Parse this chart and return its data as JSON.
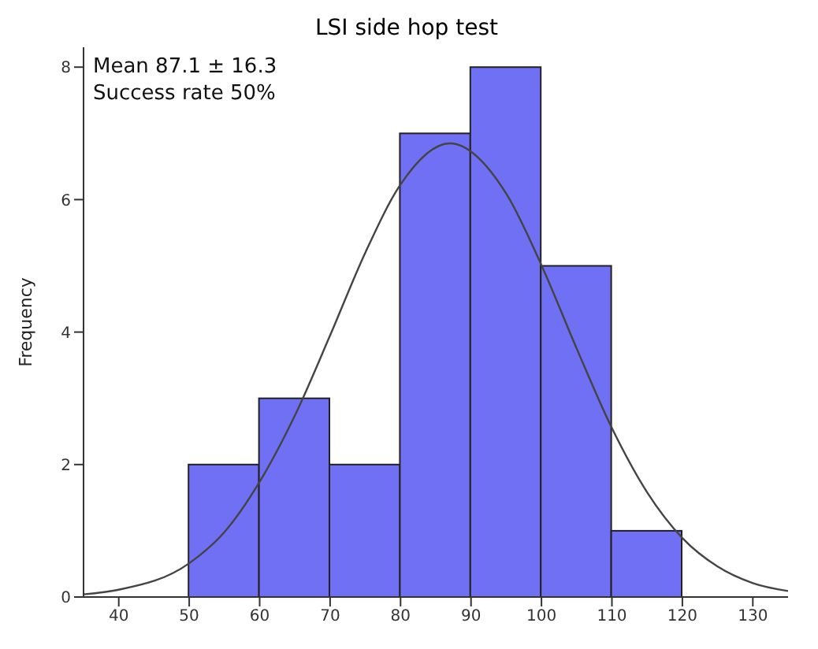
{
  "chart_data": {
    "type": "histogram",
    "title": "LSI side hop test",
    "ylabel": "Frequency",
    "annotations": [
      "Mean 87.1 ± 16.3",
      "Success rate 50%"
    ],
    "bins": [
      50,
      60,
      70,
      80,
      90,
      100,
      110,
      120
    ],
    "values": [
      2,
      3,
      2,
      7,
      8,
      5,
      1
    ],
    "color": "#7070f4",
    "series": [
      {
        "type": "line",
        "color": "#444444",
        "x": [
          35,
          40,
          50,
          55,
          60,
          65,
          70,
          75,
          80,
          87,
          95,
          100,
          105,
          110,
          115,
          120,
          125,
          130,
          135
        ],
        "values": [
          0.04,
          0.11,
          0.51,
          0.98,
          1.74,
          2.74,
          3.95,
          5.2,
          6.23,
          6.85,
          6.09,
          5.01,
          3.75,
          2.55,
          1.58,
          0.89,
          0.46,
          0.21,
          0.09
        ]
      }
    ],
    "xlim": [
      35,
      135
    ],
    "xticks": [
      40,
      50,
      60,
      70,
      80,
      90,
      100,
      110,
      120,
      130
    ],
    "ylim": [
      0,
      8.3
    ],
    "yticks": [
      0,
      2,
      4,
      6,
      8
    ],
    "grid": false,
    "legend": false
  }
}
